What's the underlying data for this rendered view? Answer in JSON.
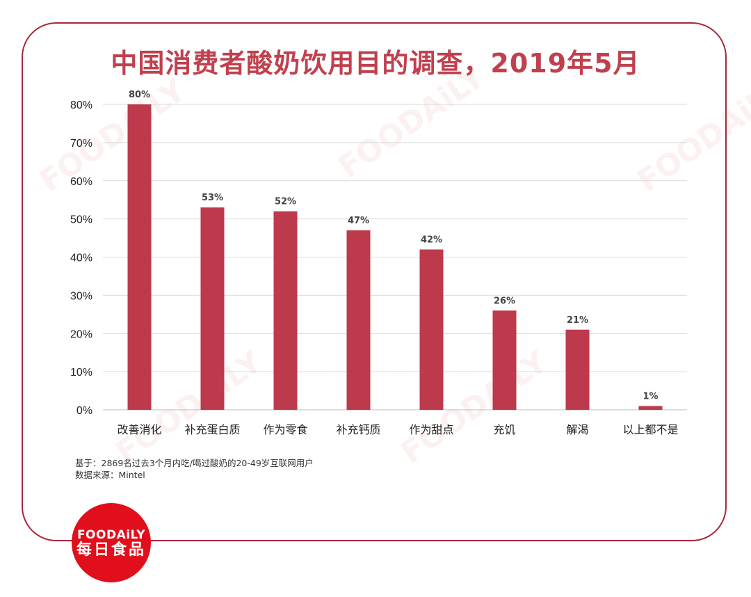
{
  "chart_data": {
    "type": "bar",
    "title": "中国消费者酸奶饮用目的调查，2019年5月",
    "categories": [
      "改善消化",
      "补充蛋白质",
      "作为零食",
      "补充钙质",
      "作为甜点",
      "充饥",
      "解渴",
      "以上都不是"
    ],
    "values": [
      80,
      53,
      52,
      47,
      42,
      26,
      21,
      1
    ],
    "data_labels": [
      "80%",
      "53%",
      "52%",
      "47%",
      "42%",
      "26%",
      "21%",
      "1%"
    ],
    "ylim": [
      0,
      80
    ],
    "yticks": [
      "0%",
      "10%",
      "20%",
      "30%",
      "40%",
      "50%",
      "60%",
      "70%",
      "80%"
    ],
    "xlabel": "",
    "ylabel": "",
    "grid": true,
    "bar_color": "#bc3a4c"
  },
  "notes": {
    "base": "基于：2869名过去3个月内吃/喝过酸奶的20-49岁互联网用户",
    "source": "数据来源：Mintel"
  },
  "logo": {
    "en": "FOODAiLY",
    "cn": "每日食品"
  },
  "colors": {
    "frame": "#a8283a",
    "title": "#c0404e",
    "logo_bg": "#e10e1c"
  }
}
